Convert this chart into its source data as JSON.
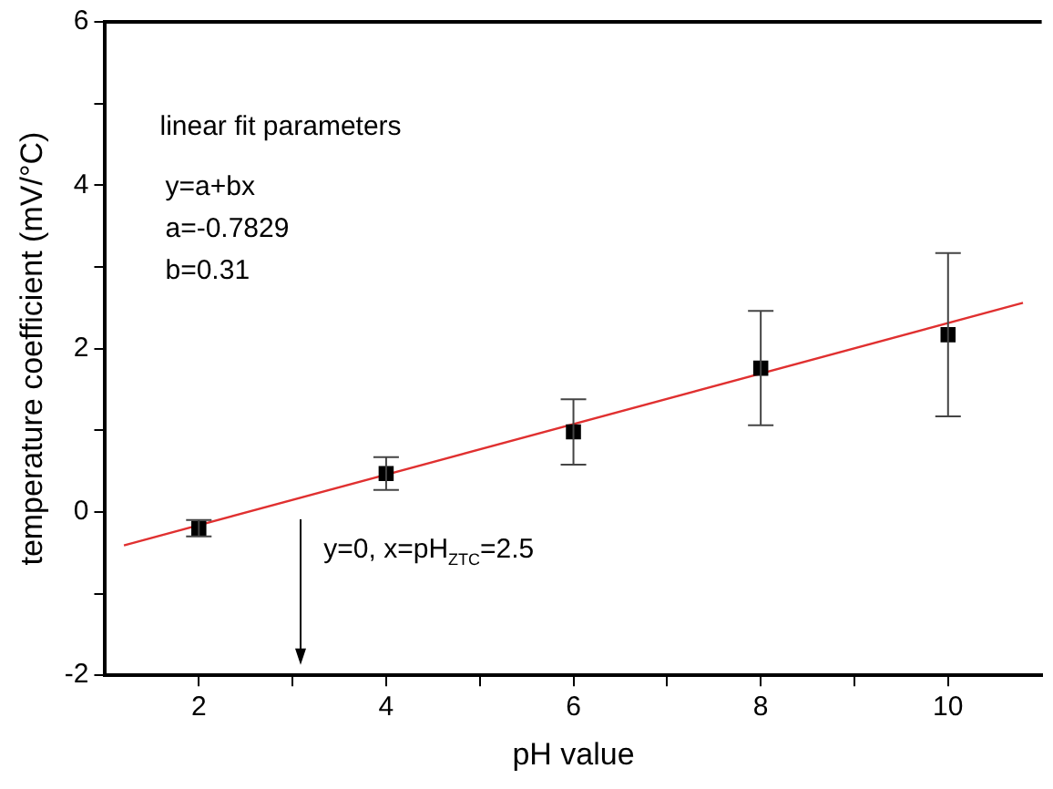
{
  "chart_data": {
    "type": "scatter",
    "xlabel": "pH value",
    "ylabel": "temperature coefficient (mV/°C)",
    "xlim": [
      1,
      11
    ],
    "xticks": [
      2,
      {
        "value": 3,
        "label": null
      },
      4,
      {
        "value": 5,
        "label": null
      },
      6,
      {
        "value": 7,
        "label": null
      },
      8,
      {
        "value": 9,
        "label": null
      },
      10
    ],
    "ylim": [
      -2,
      6
    ],
    "yticks": [
      -2,
      {
        "value": -1,
        "label": null
      },
      0,
      {
        "value": 1,
        "label": null
      },
      2,
      {
        "value": 3,
        "label": null
      },
      4,
      {
        "value": 5,
        "label": null
      },
      6
    ],
    "grid": false,
    "legend": false,
    "series": [
      {
        "color": "#000000",
        "marker": "square",
        "x": [
          2,
          4,
          6,
          8,
          10
        ],
        "values": [
          -0.2,
          0.47,
          0.98,
          1.76,
          2.17
        ],
        "errors": [
          0.1,
          0.2,
          0.4,
          0.7,
          1.0
        ]
      },
      {
        "type": "line",
        "color": "#e03030",
        "marker": "none",
        "x": [
          1.2,
          10.8
        ],
        "values": [
          -0.41,
          2.56
        ]
      }
    ],
    "annotations": [
      "linear fit parameters",
      "y=a+bx",
      "a=-0.7829",
      "b=0.31",
      "y=0, x=pH$_{ZTC}$=2.5"
    ]
  }
}
